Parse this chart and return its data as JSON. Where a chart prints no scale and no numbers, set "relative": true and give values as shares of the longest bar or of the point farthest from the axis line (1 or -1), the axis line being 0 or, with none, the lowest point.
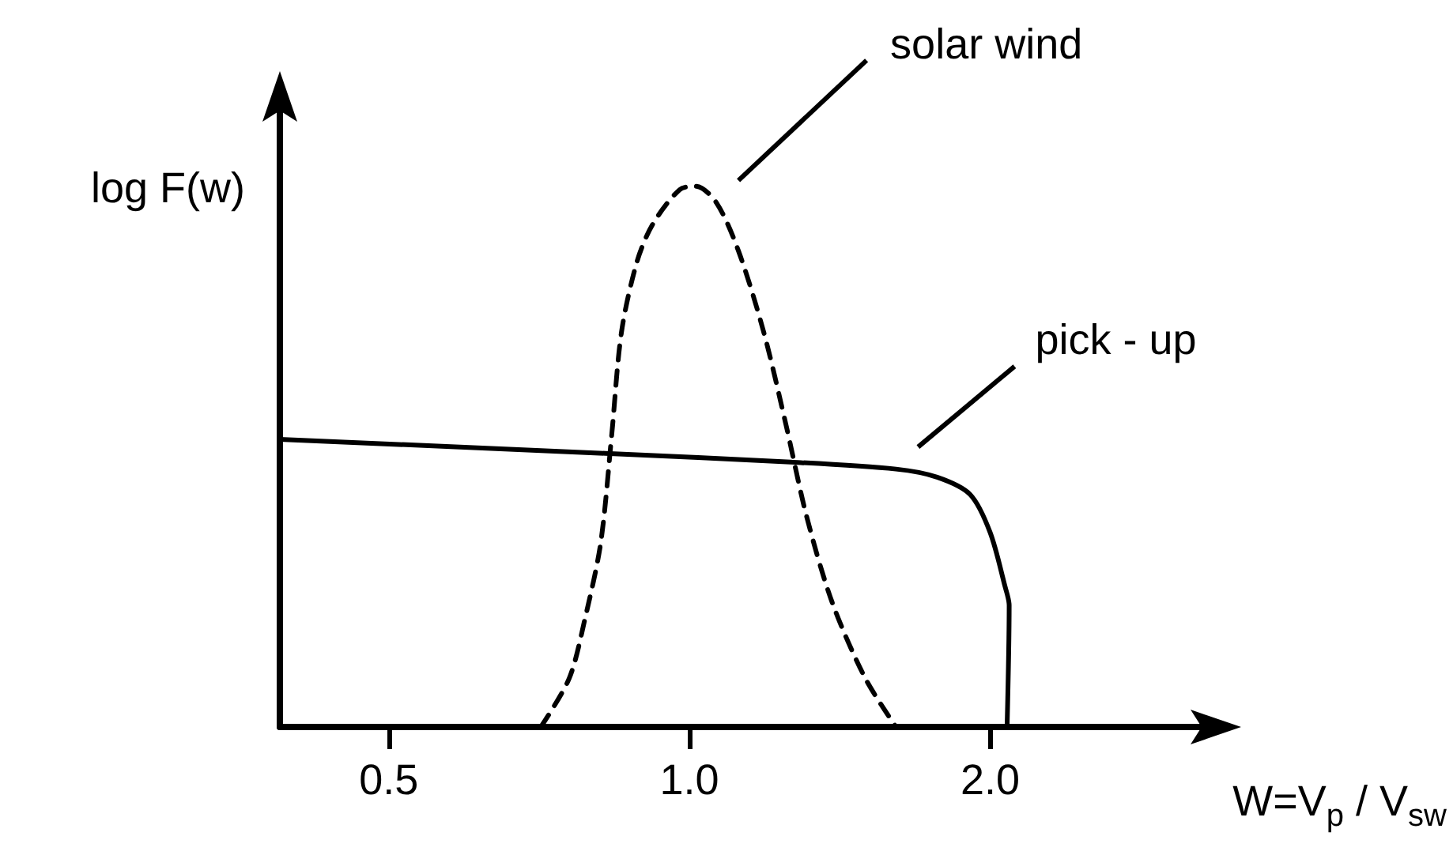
{
  "chart_data": {
    "type": "line",
    "relative": true,
    "log": "x",
    "grid": false,
    "legend": false,
    "marker": "none",
    "xlabel": "W=V$_{p}$ / V$_{sw}$",
    "ylabel": "log F(w)",
    "xlim": [
      0.389,
      3.44
    ],
    "xticks": [
      {
        "value": 0.5,
        "label": "0.5"
      },
      {
        "value": 1,
        "label": "1.0"
      },
      {
        "value": 2,
        "label": "2.0"
      }
    ],
    "series": [
      {
        "name": "solar wind",
        "color": "#000000",
        "line_style": "dashed",
        "x": [
          0.71,
          0.758,
          0.786,
          0.815,
          0.836,
          0.855,
          0.886,
          0.919,
          0.978,
          1.015,
          1.064,
          1.12,
          1.187,
          1.249,
          1.31,
          1.39,
          1.5,
          1.61
        ],
        "values": [
          0,
          0.09,
          0.2,
          0.34,
          0.54,
          0.73,
          0.86,
          0.93,
          0.994,
          1,
          0.97,
          0.88,
          0.73,
          0.56,
          0.39,
          0.23,
          0.09,
          0
        ]
      },
      {
        "name": "pick - up",
        "color": "#000000",
        "line_style": "solid",
        "x": [
          0.389,
          0.824,
          1.263,
          1.61,
          1.77,
          1.91,
          2.0,
          2.07,
          2.09,
          2.08
        ],
        "values": [
          0.532,
          0.506,
          0.49,
          0.477,
          0.462,
          0.43,
          0.36,
          0.26,
          0.225,
          0
        ]
      }
    ]
  }
}
